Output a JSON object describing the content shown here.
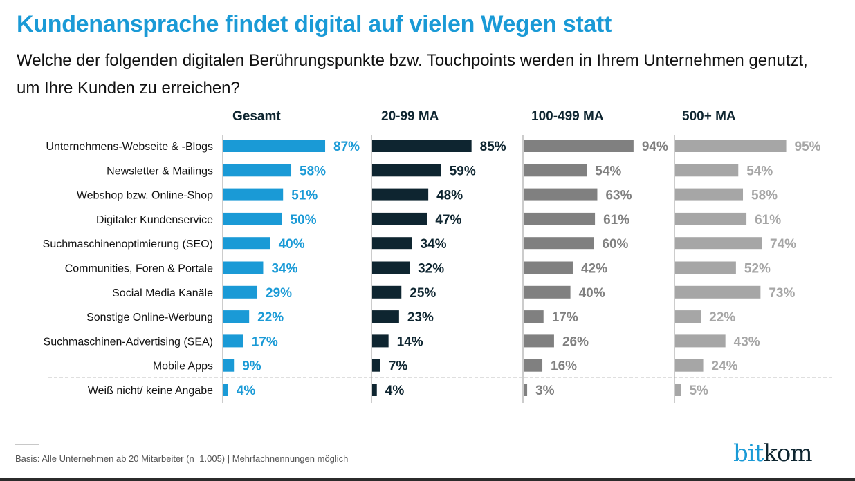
{
  "header": {
    "title": "Kundenansprache findet digital auf vielen Wegen statt",
    "subtitle": "Welche der folgenden digitalen Berührungspunkte bzw. Touchpoints werden in Ihrem Unternehmen genutzt, um Ihre Kunden zu erreichen?"
  },
  "footer": {
    "note": "Basis: Alle Unternehmen ab 20 Mitarbeiter (n=1.005) | Mehrfachnennungen möglich",
    "logo_part1": "bit",
    "logo_part2": "kom"
  },
  "chart_data": {
    "type": "bar",
    "orientation": "horizontal",
    "title": "Kundenansprache findet digital auf vielen Wegen statt",
    "xlabel": "",
    "ylabel": "",
    "xlim": [
      0,
      100
    ],
    "unit": "%",
    "grid": false,
    "categories": [
      "Unternehmens-Webseite & -Blogs",
      "Newsletter & Mailings",
      "Webshop bzw. Online-Shop",
      "Digitaler Kundenservice",
      "Suchmaschinenoptimierung (SEO)",
      "Communities, Foren & Portale",
      "Social Media Kanäle",
      "Sonstige Online-Werbung",
      "Suchmaschinen-Advertising (SEA)",
      "Mobile Apps",
      "Weiß nicht/ keine Angabe"
    ],
    "separator_before_index": 10,
    "series": [
      {
        "name": "Gesamt",
        "color": "#1a9ad6",
        "label_color": "#1a9ad6",
        "values": [
          87,
          58,
          51,
          50,
          40,
          34,
          29,
          22,
          17,
          9,
          4
        ]
      },
      {
        "name": "20-99 MA",
        "color": "#0e2530",
        "label_color": "#0e2530",
        "values": [
          85,
          59,
          48,
          47,
          34,
          32,
          25,
          23,
          14,
          7,
          4
        ]
      },
      {
        "name": "100-499 MA",
        "color": "#808080",
        "label_color": "#808080",
        "values": [
          94,
          54,
          63,
          61,
          60,
          42,
          40,
          17,
          26,
          16,
          3
        ]
      },
      {
        "name": "500+ MA",
        "color": "#a6a6a6",
        "label_color": "#a6a6a6",
        "values": [
          95,
          54,
          58,
          61,
          74,
          52,
          73,
          22,
          43,
          24,
          5
        ]
      }
    ]
  }
}
